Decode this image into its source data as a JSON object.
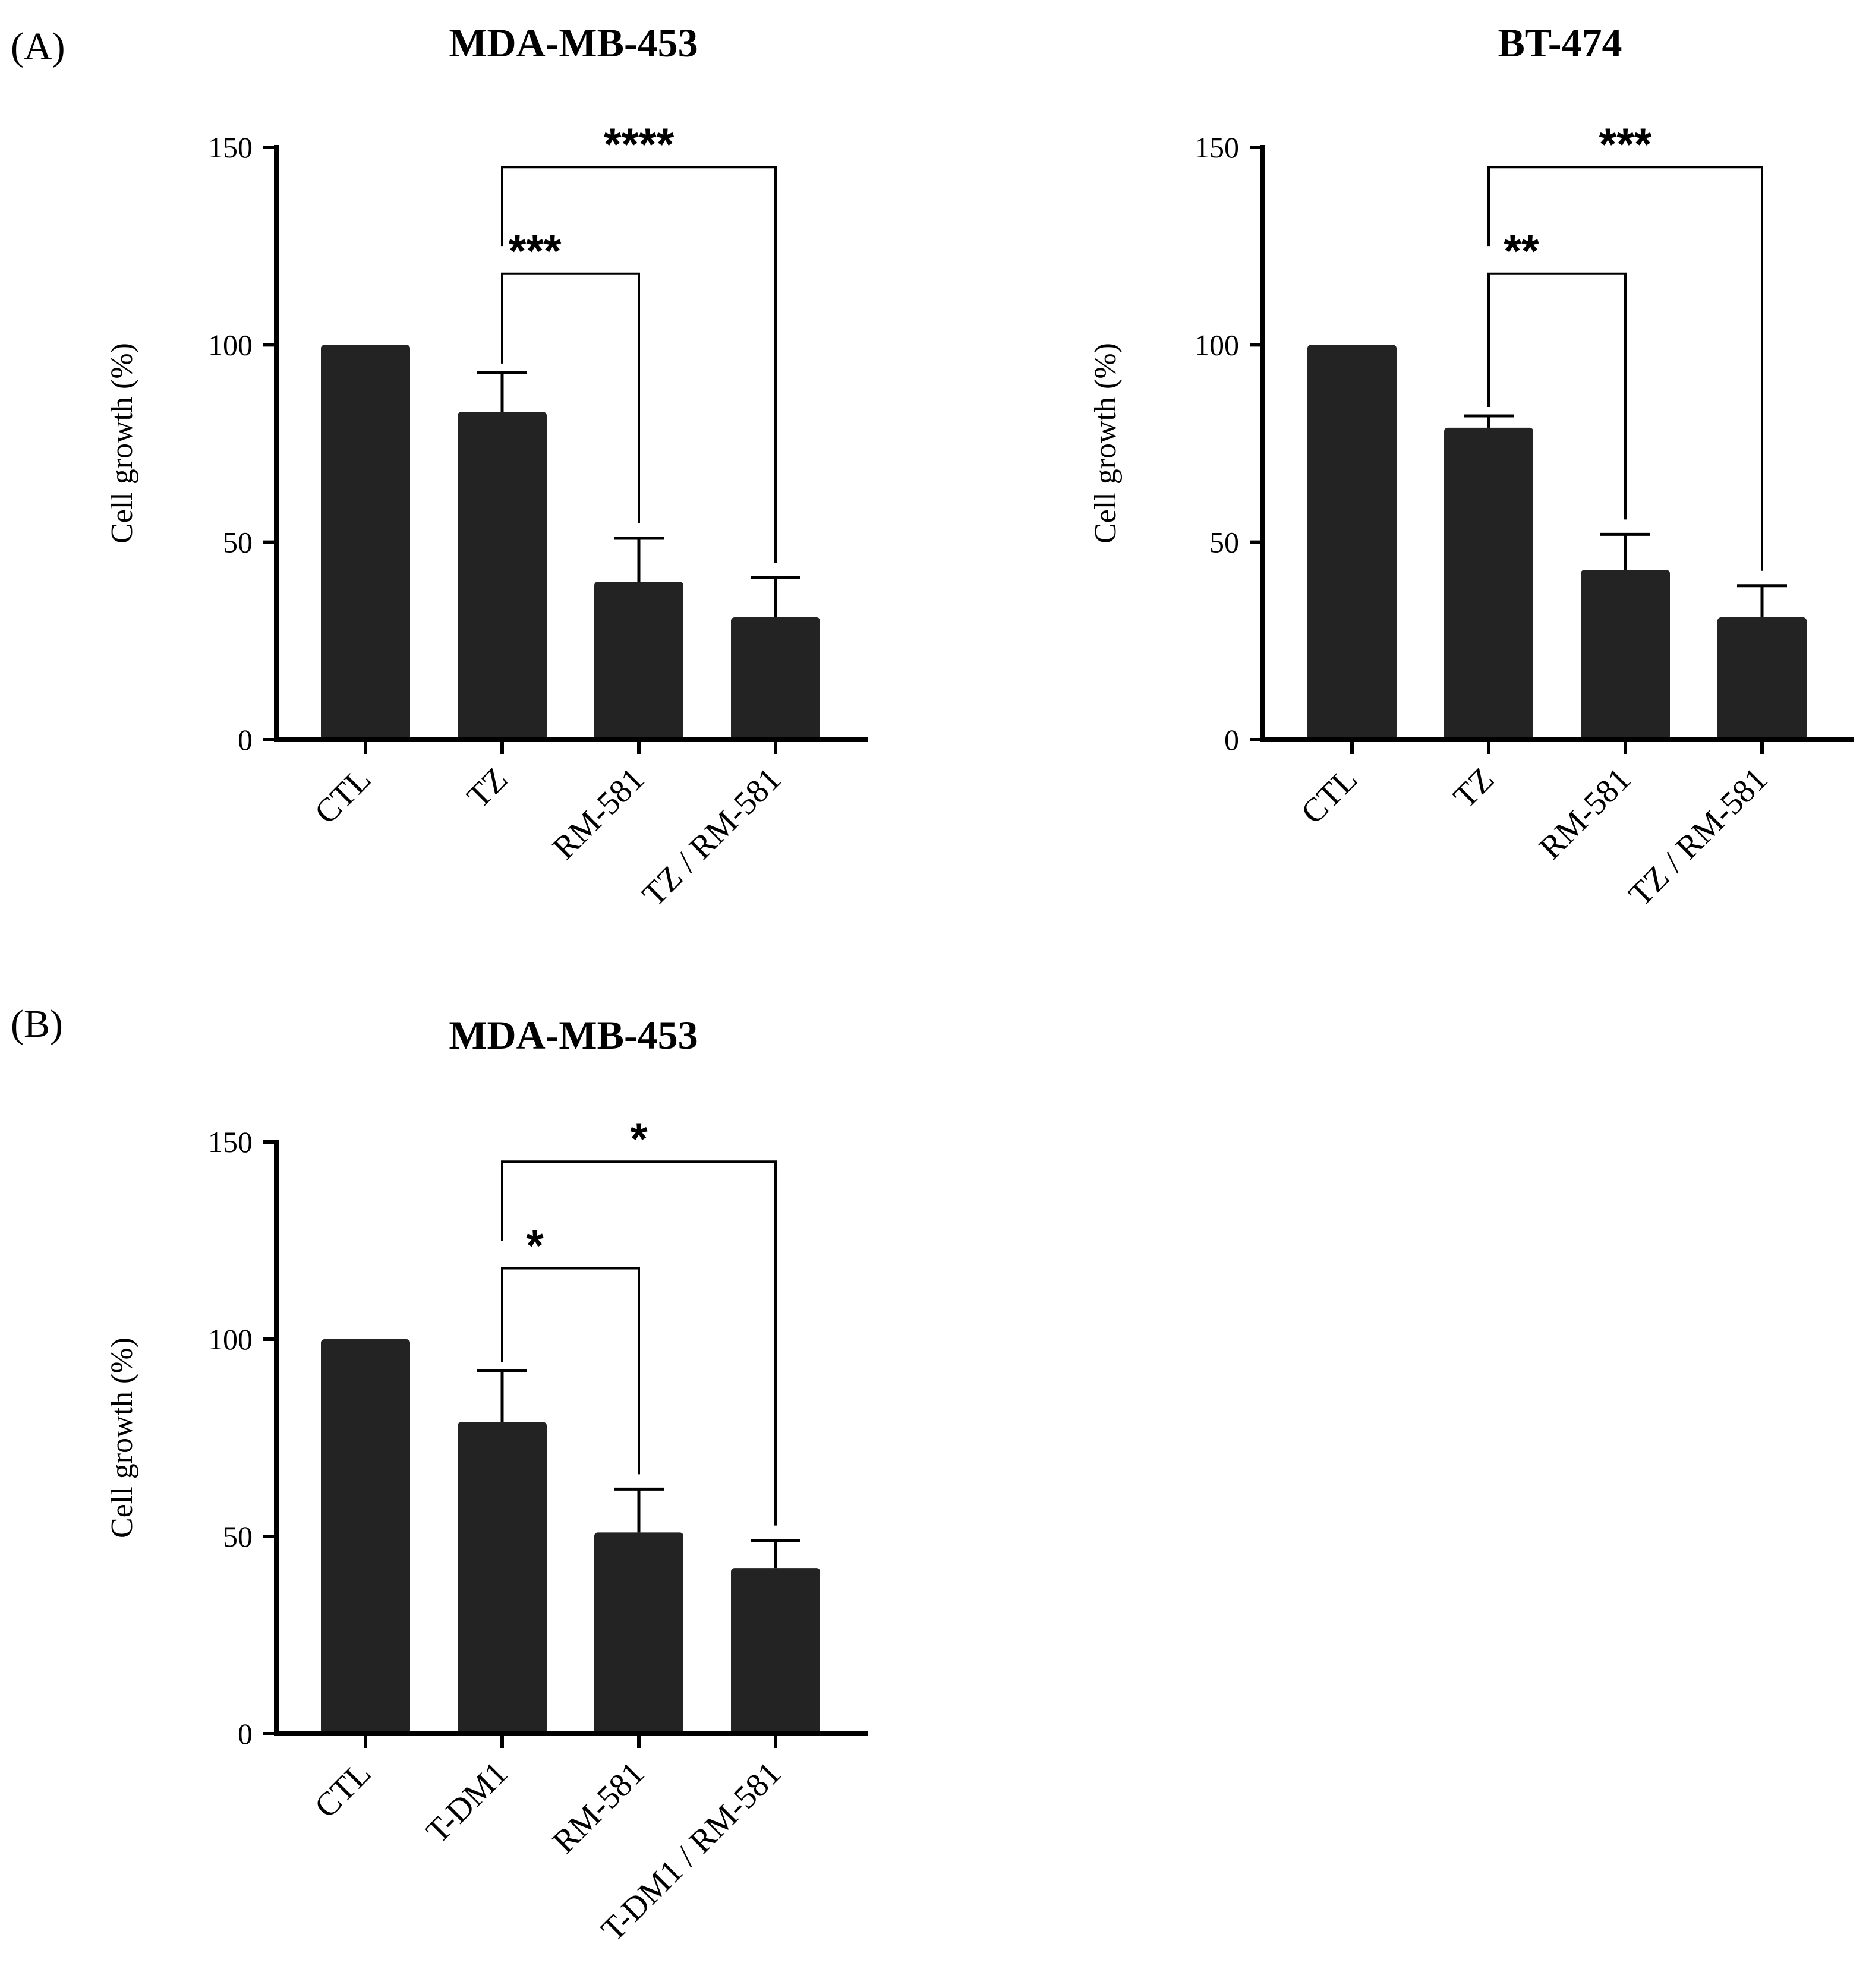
{
  "figure": {
    "panel_labels": [
      "(A)",
      "(B)"
    ]
  },
  "colors": {
    "bar": "#232323",
    "axis": "#000000",
    "background": "#ffffff"
  },
  "chart_data": [
    {
      "type": "bar",
      "panel": "(A)",
      "title": "MDA-MB-453",
      "xlabel": "",
      "ylabel": "Cell growth (%)",
      "ylim": [
        0,
        150
      ],
      "yticks": [
        0,
        50,
        100,
        150
      ],
      "categories": [
        "CTL",
        "TZ",
        "RM-581",
        "TZ / RM-581"
      ],
      "values": [
        100,
        83,
        40,
        31
      ],
      "errors": [
        0,
        10,
        11,
        10
      ],
      "significance": [
        {
          "from": 1,
          "to": 2,
          "label": "***",
          "level": 1,
          "y": 118
        },
        {
          "from": 1,
          "to": 3,
          "label": "****",
          "level": 2,
          "y": 145
        }
      ]
    },
    {
      "type": "bar",
      "panel": "(A)",
      "title": "BT-474",
      "xlabel": "",
      "ylabel": "Cell growth (%)",
      "ylim": [
        0,
        150
      ],
      "yticks": [
        0,
        50,
        100,
        150
      ],
      "categories": [
        "CTL",
        "TZ",
        "RM-581",
        "TZ / RM-581"
      ],
      "values": [
        100,
        79,
        43,
        31
      ],
      "errors": [
        0,
        3,
        9,
        8
      ],
      "significance": [
        {
          "from": 1,
          "to": 2,
          "label": "**",
          "level": 1,
          "y": 118
        },
        {
          "from": 1,
          "to": 3,
          "label": "***",
          "level": 2,
          "y": 145
        }
      ]
    },
    {
      "type": "bar",
      "panel": "(B)",
      "title": "MDA-MB-453",
      "xlabel": "",
      "ylabel": "Cell growth (%)",
      "ylim": [
        0,
        150
      ],
      "yticks": [
        0,
        50,
        100,
        150
      ],
      "categories": [
        "CTL",
        "T-DM1",
        "RM-581",
        "T-DM1 / RM-581"
      ],
      "values": [
        100,
        79,
        51,
        42
      ],
      "errors": [
        0,
        13,
        11,
        7
      ],
      "significance": [
        {
          "from": 1,
          "to": 2,
          "label": "*",
          "level": 1,
          "y": 118
        },
        {
          "from": 1,
          "to": 3,
          "label": "*",
          "level": 2,
          "y": 145
        }
      ]
    }
  ]
}
